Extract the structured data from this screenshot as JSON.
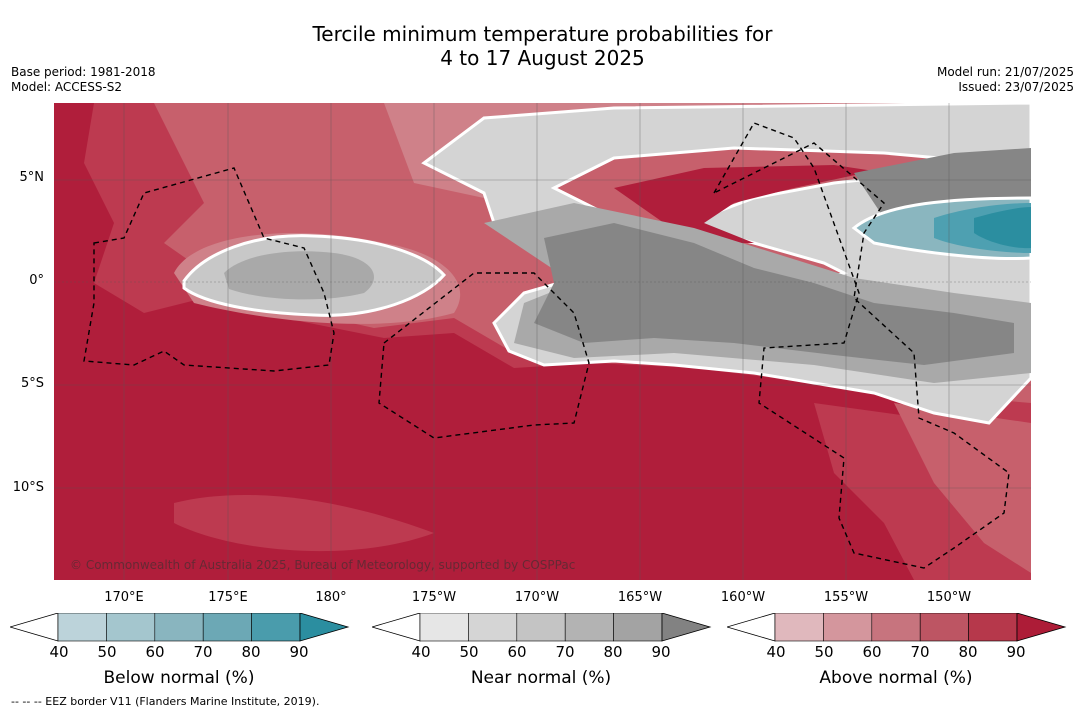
{
  "title": {
    "line1": "Tercile minimum temperature probabilities for",
    "line2": "4 to 17 August 2025"
  },
  "meta": {
    "base_period": "Base period: 1981-2018",
    "model": "Model: ACCESS-S2",
    "model_run": "Model run: 21/07/2025",
    "issued": "Issued: 23/07/2025"
  },
  "map": {
    "copyright": "© Commonwealth of Australia 2025, Bureau of Meteorology, supported by COSPPac",
    "lat_labels": [
      "5°N",
      "0°",
      "5°S",
      "10°S"
    ],
    "lon_labels": [
      "170°E",
      "175°E",
      "180°",
      "175°W",
      "170°W",
      "165°W",
      "160°W",
      "155°W",
      "150°W"
    ],
    "colors": {
      "above_90": "#b01e3b",
      "above_80": "#bd3a50",
      "above_70": "#c7606c",
      "above_60": "#cf8189",
      "near_70": "#c8c8c8",
      "near_80": "#a9a9a9",
      "near_90": "#868686",
      "near_60": "#d9d9d9",
      "below_80": "#4ea0b1",
      "below_90": "#2b8ea0"
    }
  },
  "colorbars": [
    {
      "title": "Below normal (%)",
      "ticks": [
        "40",
        "50",
        "60",
        "70",
        "80",
        "90"
      ],
      "colors": [
        "#bcd3da",
        "#a4c6ce",
        "#89b5bf",
        "#6ca8b5",
        "#4a9cac",
        "#2b8ea0"
      ]
    },
    {
      "title": "Near normal (%)",
      "ticks": [
        "40",
        "50",
        "60",
        "70",
        "80",
        "90"
      ],
      "colors": [
        "#e6e6e6",
        "#d5d5d5",
        "#c4c4c4",
        "#b3b3b3",
        "#a3a3a3",
        "#828282"
      ]
    },
    {
      "title": "Above normal (%)",
      "ticks": [
        "40",
        "50",
        "60",
        "70",
        "80",
        "90"
      ],
      "colors": [
        "#e0b8bd",
        "#d4969d",
        "#c7747e",
        "#bd5563",
        "#b6384b",
        "#ad1c37"
      ]
    }
  ],
  "footer": {
    "eez_note": "--  --  -- EEZ border V11 (Flanders Marine Institute, 2019)."
  }
}
